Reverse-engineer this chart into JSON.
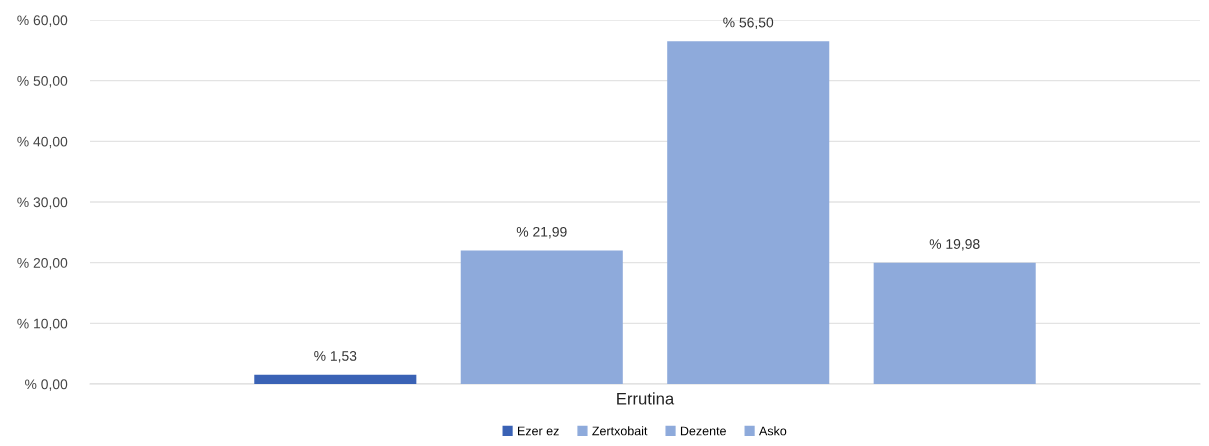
{
  "chart_data": {
    "type": "bar",
    "categories": [
      "Errutina"
    ],
    "series": [
      {
        "name": "Ezer ez",
        "color": "#3a62b5",
        "values": [
          1.53
        ],
        "value_labels": [
          "% 1,53"
        ]
      },
      {
        "name": "Zertxobait",
        "color": "#8eaadb",
        "values": [
          21.99
        ],
        "value_labels": [
          "% 21,99"
        ]
      },
      {
        "name": "Dezente",
        "color": "#8eaadb",
        "values": [
          56.5
        ],
        "value_labels": [
          "% 56,50"
        ]
      },
      {
        "name": "Asko",
        "color": "#8eaadb",
        "values": [
          19.98
        ],
        "value_labels": [
          "% 19,98"
        ]
      }
    ],
    "ylim": [
      0,
      60
    ],
    "yticks": [
      {
        "value": 0,
        "label": "% 0,00"
      },
      {
        "value": 10,
        "label": "% 10,00"
      },
      {
        "value": 20,
        "label": "% 20,00"
      },
      {
        "value": 30,
        "label": "% 30,00"
      },
      {
        "value": 40,
        "label": "% 40,00"
      },
      {
        "value": 50,
        "label": "% 50,00"
      },
      {
        "value": 60,
        "label": "% 60,00"
      }
    ],
    "grid": "y",
    "legend": "bottom"
  }
}
